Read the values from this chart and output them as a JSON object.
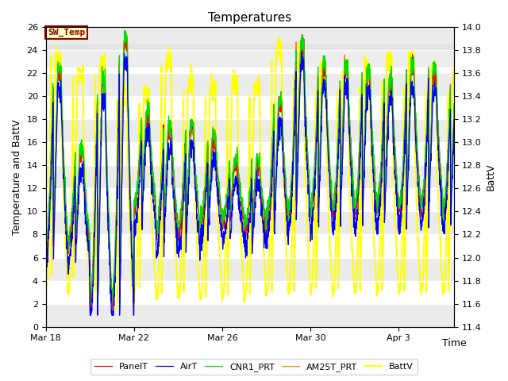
{
  "title": "Temperatures",
  "xlabel": "Time",
  "ylabel_left": "Temperature and BattV",
  "ylabel_right": "BattV",
  "ylim_left": [
    0,
    26
  ],
  "ylim_right": [
    11.4,
    14.0
  ],
  "xtick_labels": [
    "Mar 18",
    "Mar 22",
    "Mar 26",
    "Mar 30",
    "Apr 3"
  ],
  "xtick_days": [
    0,
    4,
    8,
    12,
    16
  ],
  "sw_temp_label": "SW_Temp",
  "sw_temp_box_color": "#8B0000",
  "sw_temp_box_fill": "#FFFFC0",
  "legend_entries": [
    "PanelT",
    "AirT",
    "CNR1_PRT",
    "AM25T_PRT",
    "BattV"
  ],
  "line_colors": {
    "PanelT": "#FF0000",
    "AirT": "#0000FF",
    "CNR1_PRT": "#00DD00",
    "AM25T_PRT": "#FF8800",
    "BattV": "#FFFF00"
  },
  "background_color": "#FFFFFF",
  "plot_bg_color": "#FFFFFF",
  "grid_color": "#CCCCCC",
  "start_day": 0,
  "end_day": 18.5,
  "title_fontsize": 11,
  "axis_label_fontsize": 9,
  "tick_fontsize": 8,
  "legend_fontsize": 8,
  "shaded_band_ymin": 22.5,
  "shaded_band_ymax": 24.5,
  "shaded_band_color": "#DCDCDC"
}
